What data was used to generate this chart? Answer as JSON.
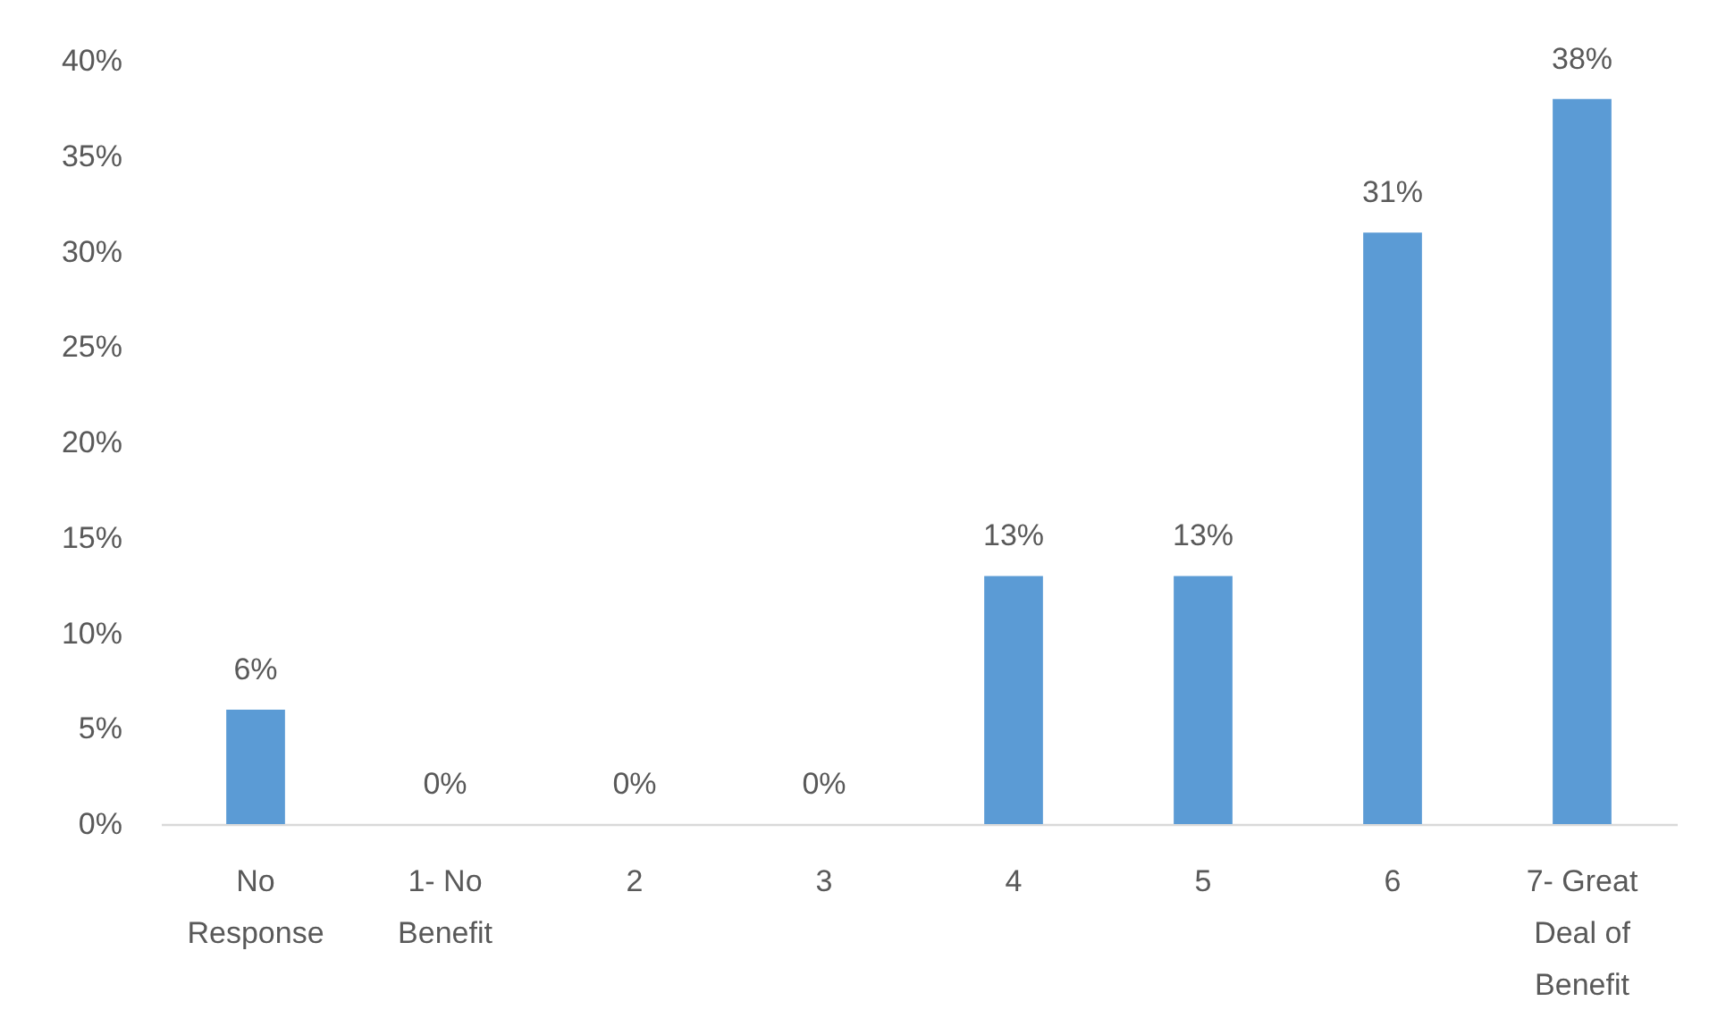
{
  "chart_data": {
    "type": "bar",
    "categories": [
      "No Response",
      "1- No Benefit",
      "2",
      "3",
      "4",
      "5",
      "6",
      "7- Great Deal of Benefit"
    ],
    "values": [
      6,
      0,
      0,
      0,
      13,
      13,
      31,
      38
    ],
    "value_labels": [
      "6%",
      "0%",
      "0%",
      "0%",
      "13%",
      "13%",
      "31%",
      "38%"
    ],
    "color": "#5b9bd5",
    "ylim": [
      0,
      40
    ],
    "yticks": [
      {
        "value": 0,
        "label": "0%"
      },
      {
        "value": 5,
        "label": "5%"
      },
      {
        "value": 10,
        "label": "10%"
      },
      {
        "value": 15,
        "label": "15%"
      },
      {
        "value": 20,
        "label": "20%"
      },
      {
        "value": 25,
        "label": "25%"
      },
      {
        "value": 30,
        "label": "30%"
      },
      {
        "value": 35,
        "label": "35%"
      },
      {
        "value": 40,
        "label": "40%"
      }
    ]
  }
}
